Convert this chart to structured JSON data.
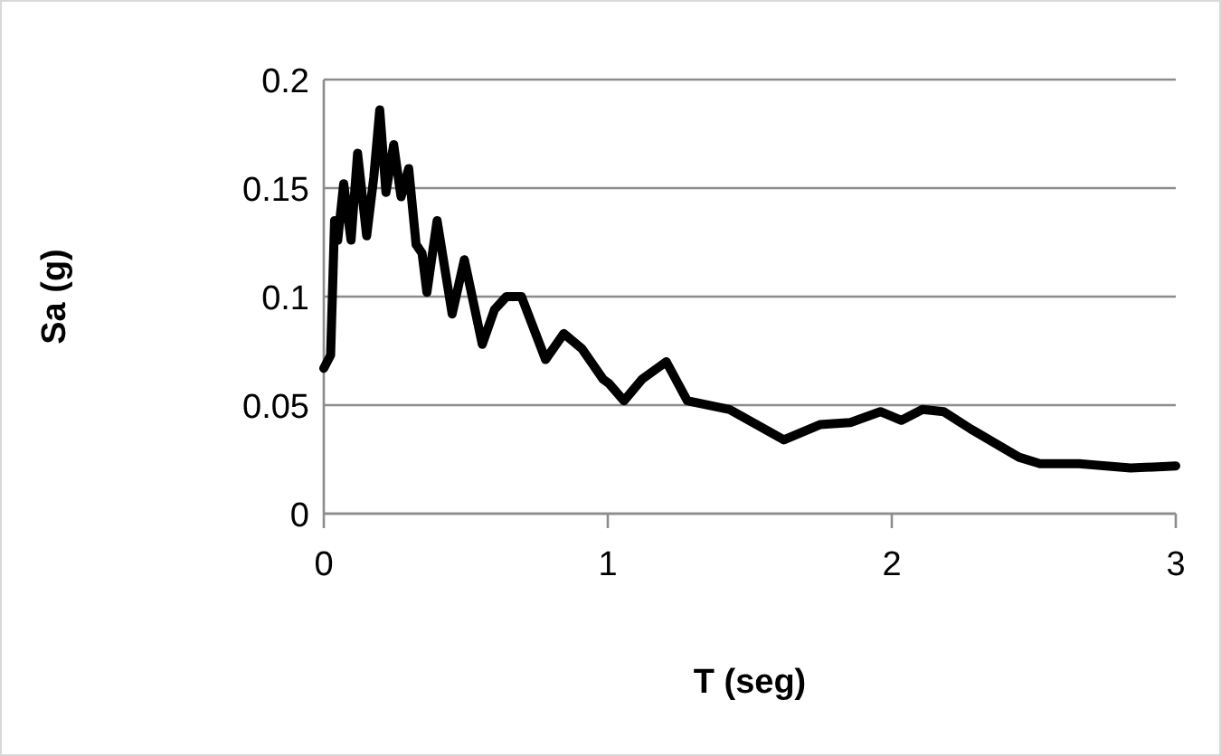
{
  "chart_data": {
    "type": "line",
    "xlabel": "T (seg)",
    "ylabel": "Sa (g)",
    "xlim": [
      0,
      3
    ],
    "xticks": [
      0,
      1,
      2,
      3
    ],
    "ylim": [
      0,
      0.2
    ],
    "yticks": [
      0,
      0.05,
      0.1,
      0.15,
      0.2
    ],
    "grid": "y",
    "marker": "none",
    "line_style": "solid",
    "series": [
      {
        "color": "#000000",
        "x": [
          0,
          0.024,
          0.038,
          0.049,
          0.07,
          0.096,
          0.119,
          0.151,
          0.176,
          0.197,
          0.219,
          0.246,
          0.272,
          0.299,
          0.325,
          0.346,
          0.363,
          0.399,
          0.452,
          0.495,
          0.558,
          0.601,
          0.643,
          0.696,
          0.781,
          0.845,
          0.909,
          0.983,
          1.004,
          1.057,
          1.121,
          1.206,
          1.28,
          1.429,
          1.62,
          1.747,
          1.854,
          1.96,
          2.034,
          2.108,
          2.183,
          2.278,
          2.448,
          2.522,
          2.66,
          2.841,
          3
        ],
        "values": [
          0.067,
          0.073,
          0.135,
          0.126,
          0.152,
          0.126,
          0.166,
          0.128,
          0.155,
          0.186,
          0.148,
          0.17,
          0.146,
          0.159,
          0.124,
          0.12,
          0.102,
          0.135,
          0.092,
          0.117,
          0.078,
          0.094,
          0.1,
          0.1,
          0.071,
          0.083,
          0.076,
          0.062,
          0.06,
          0.052,
          0.062,
          0.07,
          0.052,
          0.048,
          0.034,
          0.041,
          0.042,
          0.047,
          0.043,
          0.048,
          0.047,
          0.039,
          0.026,
          0.023,
          0.023,
          0.021,
          0.022
        ]
      }
    ]
  }
}
